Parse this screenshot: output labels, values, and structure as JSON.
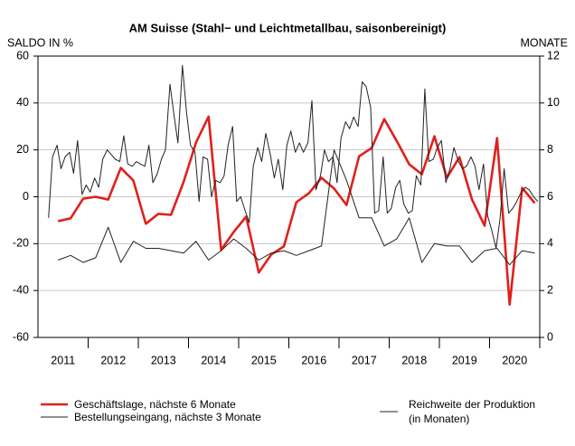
{
  "chart_data": {
    "type": "line",
    "title": "AM Suisse (Stahl− und Leichtmetallbau, saisonbereinigt)",
    "ylabel": "SALDO IN %",
    "y2label": "MONATE",
    "xlim": [
      2011,
      2021
    ],
    "xticks": [
      {
        "value": 2011.5,
        "label": "2011"
      },
      {
        "value": 2012.5,
        "label": "2012"
      },
      {
        "value": 2013.5,
        "label": "2013"
      },
      {
        "value": 2014.5,
        "label": "2014"
      },
      {
        "value": 2015.5,
        "label": "2015"
      },
      {
        "value": 2016.5,
        "label": "2016"
      },
      {
        "value": 2017.5,
        "label": "2017"
      },
      {
        "value": 2018.5,
        "label": "2018"
      },
      {
        "value": 2019.5,
        "label": "2019"
      },
      {
        "value": 2020.5,
        "label": "2020"
      }
    ],
    "ylim": [
      -60,
      60
    ],
    "yticks": [
      -60,
      -40,
      -20,
      0,
      20,
      40,
      60
    ],
    "y2lim": [
      0,
      12
    ],
    "y2ticks": [
      0,
      2,
      4,
      6,
      8,
      10,
      12
    ],
    "grid": true,
    "series": [
      {
        "name": "Geschäftslage, nächste 6 Monate",
        "color": "#e0201b",
        "x": [
          2011.4,
          2011.65,
          2011.9,
          2012.15,
          2012.4,
          2012.65,
          2012.9,
          2013.15,
          2013.4,
          2013.65,
          2013.9,
          2014.15,
          2014.4,
          2014.65,
          2014.9,
          2015.15,
          2015.4,
          2015.65,
          2015.9,
          2016.15,
          2016.4,
          2016.65,
          2016.9,
          2017.15,
          2017.4,
          2017.65,
          2017.9,
          2018.15,
          2018.4,
          2018.65,
          2018.9,
          2019.15,
          2019.4,
          2019.65,
          2019.9,
          2020.15,
          2020.4,
          2020.65,
          2020.9
        ],
        "values": [
          -10.4,
          -9.2,
          -0.8,
          0,
          -1.2,
          12.3,
          6.9,
          -11.5,
          -7.3,
          -7.7,
          6.2,
          23.1,
          34.2,
          -22.7,
          -15,
          -8.5,
          -32.3,
          -24.6,
          -21.2,
          -2.3,
          1.5,
          8.1,
          3.5,
          -3.5,
          17.3,
          20.8,
          33.1,
          23.8,
          13.8,
          9.6,
          25.8,
          8.1,
          16.9,
          -1.2,
          -12.3,
          25,
          -46,
          3.8,
          -2.7
        ]
      },
      {
        "name": "Bestellungseingang, nächste 3 Monate",
        "color": "#222222",
        "x": [
          2011.21,
          2011.29,
          2011.38,
          2011.46,
          2011.54,
          2011.63,
          2011.71,
          2011.79,
          2011.88,
          2011.96,
          2012.04,
          2012.13,
          2012.21,
          2012.29,
          2012.38,
          2012.46,
          2012.54,
          2012.63,
          2012.71,
          2012.79,
          2012.88,
          2012.96,
          2013.04,
          2013.13,
          2013.21,
          2013.29,
          2013.38,
          2013.46,
          2013.54,
          2013.63,
          2013.71,
          2013.79,
          2013.88,
          2013.96,
          2014.04,
          2014.13,
          2014.21,
          2014.29,
          2014.38,
          2014.46,
          2014.54,
          2014.63,
          2014.71,
          2014.79,
          2014.88,
          2014.96,
          2015.04,
          2015.13,
          2015.21,
          2015.29,
          2015.38,
          2015.46,
          2015.54,
          2015.63,
          2015.71,
          2015.79,
          2015.88,
          2015.96,
          2016.04,
          2016.13,
          2016.21,
          2016.29,
          2016.38,
          2016.46,
          2016.54,
          2016.63,
          2016.71,
          2016.79,
          2016.88,
          2016.96,
          2017.04,
          2017.13,
          2017.21,
          2017.29,
          2017.38,
          2017.46,
          2017.54,
          2017.63,
          2017.71,
          2017.79,
          2017.88,
          2017.96,
          2018.04,
          2018.13,
          2018.21,
          2018.29,
          2018.38,
          2018.46,
          2018.54,
          2018.63,
          2018.71,
          2018.79,
          2018.88,
          2018.96,
          2019.04,
          2019.13,
          2019.21,
          2019.29,
          2019.38,
          2019.46,
          2019.54,
          2019.63,
          2019.71,
          2019.79,
          2019.88,
          2019.96,
          2020.04,
          2020.13,
          2020.21,
          2020.29,
          2020.38,
          2020.46,
          2020.54,
          2020.63,
          2020.71,
          2020.79,
          2020.88,
          2020.96
        ],
        "values": [
          -9,
          17,
          22,
          12,
          17,
          19,
          10,
          24,
          1,
          5,
          2,
          8,
          4,
          16,
          20,
          18,
          16,
          15,
          26,
          14,
          13,
          15,
          14,
          13,
          22,
          6,
          10,
          16,
          20,
          48,
          35,
          23,
          56,
          36,
          22,
          19,
          -2,
          17,
          16,
          0,
          7,
          6,
          9,
          22,
          30,
          -2,
          0,
          -6,
          -11,
          13,
          21,
          15,
          27,
          18,
          8,
          16,
          3,
          22,
          28,
          19,
          23,
          19,
          23,
          41,
          3,
          9,
          20,
          15,
          17,
          6,
          25,
          32,
          29,
          34,
          30,
          49,
          47,
          38,
          -7,
          -6,
          17,
          -7,
          -5,
          4,
          7,
          -3,
          -7,
          -6,
          9,
          5,
          46,
          15,
          16,
          21,
          24,
          6,
          12,
          21,
          15,
          12,
          13,
          17,
          13,
          3,
          14,
          -8,
          -14,
          -22,
          -9,
          12,
          -7,
          -5,
          -2,
          2,
          4,
          3,
          0,
          -2
        ]
      },
      {
        "name": "Reichweite der Produktion\n(in Monaten)",
        "color": "#222222",
        "axis": "y2",
        "x": [
          2011.4,
          2011.65,
          2011.9,
          2012.15,
          2012.4,
          2012.65,
          2012.9,
          2013.15,
          2013.4,
          2013.65,
          2013.9,
          2014.15,
          2014.4,
          2014.65,
          2014.9,
          2015.15,
          2015.4,
          2015.65,
          2015.9,
          2016.15,
          2016.4,
          2016.65,
          2016.9,
          2017.15,
          2017.4,
          2017.65,
          2017.9,
          2018.15,
          2018.4,
          2018.65,
          2018.9,
          2019.15,
          2019.4,
          2019.65,
          2019.9,
          2020.15,
          2020.4,
          2020.65,
          2020.9
        ],
        "values": [
          3.3,
          3.5,
          3.2,
          3.4,
          4.7,
          3.2,
          4.1,
          3.8,
          3.8,
          3.7,
          3.6,
          4.1,
          3.3,
          3.7,
          4.2,
          3.8,
          3.3,
          3.6,
          3.7,
          3.5,
          3.7,
          3.9,
          8.0,
          6.7,
          5.1,
          5.1,
          3.9,
          4.2,
          5.1,
          3.2,
          4.0,
          3.9,
          3.9,
          3.2,
          3.7,
          3.8,
          3.1,
          3.7,
          3.6
        ]
      }
    ]
  }
}
